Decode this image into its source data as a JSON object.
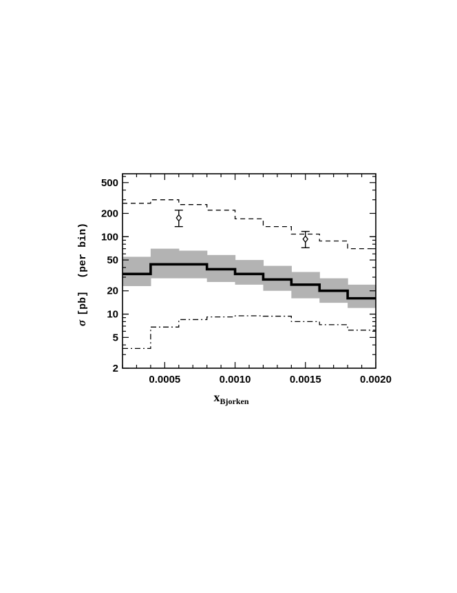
{
  "chart_data": {
    "type": "line",
    "title": "",
    "xlabel": {
      "main": "x",
      "sub": "Bjorken"
    },
    "ylabel": {
      "symbol": "σ",
      "text": "[pb]  (per bin)"
    },
    "xlim": [
      0.0002,
      0.002
    ],
    "ylim": [
      2,
      650
    ],
    "yscale": "log",
    "grid": false,
    "x_ticks": [
      {
        "value": 0.0005,
        "label": "0.0005"
      },
      {
        "value": 0.001,
        "label": "0.0010"
      },
      {
        "value": 0.0015,
        "label": "0.0015"
      },
      {
        "value": 0.002,
        "label": "0.0020"
      }
    ],
    "y_ticks": [
      {
        "value": 2,
        "label": "2"
      },
      {
        "value": 5,
        "label": "5"
      },
      {
        "value": 10,
        "label": "10"
      },
      {
        "value": 20,
        "label": "20"
      },
      {
        "value": 50,
        "label": "50"
      },
      {
        "value": 100,
        "label": "100"
      },
      {
        "value": 200,
        "label": "200"
      },
      {
        "value": 500,
        "label": "500"
      }
    ],
    "bin_edges": [
      0.0002,
      0.0004,
      0.0006,
      0.0008,
      0.001,
      0.0012,
      0.0014,
      0.0016,
      0.0018,
      0.002
    ],
    "band": {
      "low": [
        23,
        29,
        29,
        26,
        24,
        20,
        16,
        14,
        12
      ],
      "high": [
        55,
        70,
        66,
        58,
        50,
        42,
        35,
        29,
        24
      ]
    },
    "series": [
      {
        "style": "solid-thick",
        "color": "#000000",
        "values": [
          33,
          44,
          44,
          38,
          33,
          28,
          24,
          20,
          16
        ]
      },
      {
        "style": "dashed",
        "color": "#000000",
        "values": [
          270,
          300,
          260,
          220,
          170,
          135,
          108,
          88,
          70
        ]
      },
      {
        "style": "dash-dot",
        "color": "#000000",
        "values": [
          3.6,
          6.8,
          8.5,
          9.2,
          9.5,
          9.4,
          8.0,
          7.3,
          6.2
        ]
      }
    ],
    "points": [
      {
        "x": 0.0006,
        "y": 175,
        "err_low": 135,
        "err_high": 220
      },
      {
        "x": 0.0015,
        "y": 93,
        "err_low": 72,
        "err_high": 117
      }
    ],
    "band_color": "#b3b3b3"
  }
}
